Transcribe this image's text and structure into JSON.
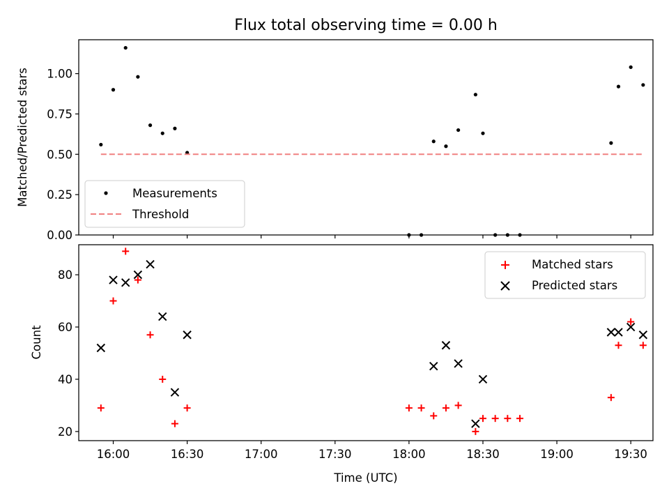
{
  "chart_data": [
    {
      "type": "scatter",
      "title": "Flux total observing time = 0.00 h",
      "xlabel": "",
      "ylabel": "Matched/Predicted stars",
      "xlim": [
        "15:46",
        "19:39"
      ],
      "ylim": [
        0.0,
        1.21
      ],
      "yticks": [
        0.0,
        0.25,
        0.5,
        0.75,
        1.0
      ],
      "ytick_labels": [
        "0.00",
        "0.25",
        "0.50",
        "0.75",
        "1.00"
      ],
      "xticks": [
        "16:00",
        "16:30",
        "17:00",
        "17:30",
        "18:00",
        "18:30",
        "19:00",
        "19:30"
      ],
      "xtick_labels_shown": false,
      "legend_position": "lower-left",
      "series": [
        {
          "name": "Measurements",
          "marker": "dot",
          "color": "#000000",
          "x": [
            "15:55",
            "16:00",
            "16:05",
            "16:10",
            "16:15",
            "16:20",
            "16:25",
            "16:30",
            "18:00",
            "18:05",
            "18:10",
            "18:15",
            "18:20",
            "18:27",
            "18:30",
            "18:35",
            "18:40",
            "18:45",
            "19:22",
            "19:25",
            "19:30",
            "19:35"
          ],
          "y": [
            0.56,
            0.9,
            1.16,
            0.98,
            0.68,
            0.63,
            0.66,
            0.51,
            0.0,
            0.0,
            0.58,
            0.55,
            0.65,
            0.87,
            0.63,
            0.0,
            0.0,
            0.0,
            0.57,
            0.92,
            1.04,
            0.93
          ]
        },
        {
          "name": "Threshold",
          "marker": "dashed-line",
          "color": "#f08080",
          "x": [
            "15:55",
            "19:35"
          ],
          "y": [
            0.5,
            0.5
          ]
        }
      ]
    },
    {
      "type": "scatter",
      "title": "",
      "xlabel": "Time (UTC)",
      "ylabel": "Count",
      "xlim": [
        "15:46",
        "19:39"
      ],
      "ylim": [
        16.5,
        91.5
      ],
      "yticks": [
        20,
        40,
        60,
        80
      ],
      "ytick_labels": [
        "20",
        "40",
        "60",
        "80"
      ],
      "xticks": [
        "16:00",
        "16:30",
        "17:00",
        "17:30",
        "18:00",
        "18:30",
        "19:00",
        "19:30"
      ],
      "xtick_labels": [
        "16:00",
        "16:30",
        "17:00",
        "17:30",
        "18:00",
        "18:30",
        "19:00",
        "19:30"
      ],
      "legend_position": "top-right",
      "series": [
        {
          "name": "Matched stars",
          "marker": "plus",
          "color": "#ff0000",
          "x": [
            "15:55",
            "16:00",
            "16:05",
            "16:10",
            "16:15",
            "16:20",
            "16:25",
            "16:30",
            "18:00",
            "18:05",
            "18:10",
            "18:15",
            "18:20",
            "18:27",
            "18:30",
            "18:35",
            "18:40",
            "18:45",
            "19:22",
            "19:25",
            "19:30",
            "19:35"
          ],
          "y": [
            29,
            70,
            89,
            78,
            57,
            40,
            23,
            29,
            29,
            29,
            26,
            29,
            30,
            20,
            25,
            25,
            25,
            25,
            33,
            53,
            62,
            53
          ]
        },
        {
          "name": "Predicted stars",
          "marker": "x",
          "color": "#000000",
          "x": [
            "15:55",
            "16:00",
            "16:05",
            "16:10",
            "16:15",
            "16:20",
            "16:25",
            "16:30",
            "18:10",
            "18:15",
            "18:20",
            "18:27",
            "18:30",
            "19:22",
            "19:25",
            "19:30",
            "19:35"
          ],
          "y": [
            52,
            78,
            77,
            80,
            84,
            64,
            35,
            57,
            45,
            53,
            46,
            23,
            40,
            58,
            58,
            60,
            57
          ]
        }
      ]
    }
  ]
}
